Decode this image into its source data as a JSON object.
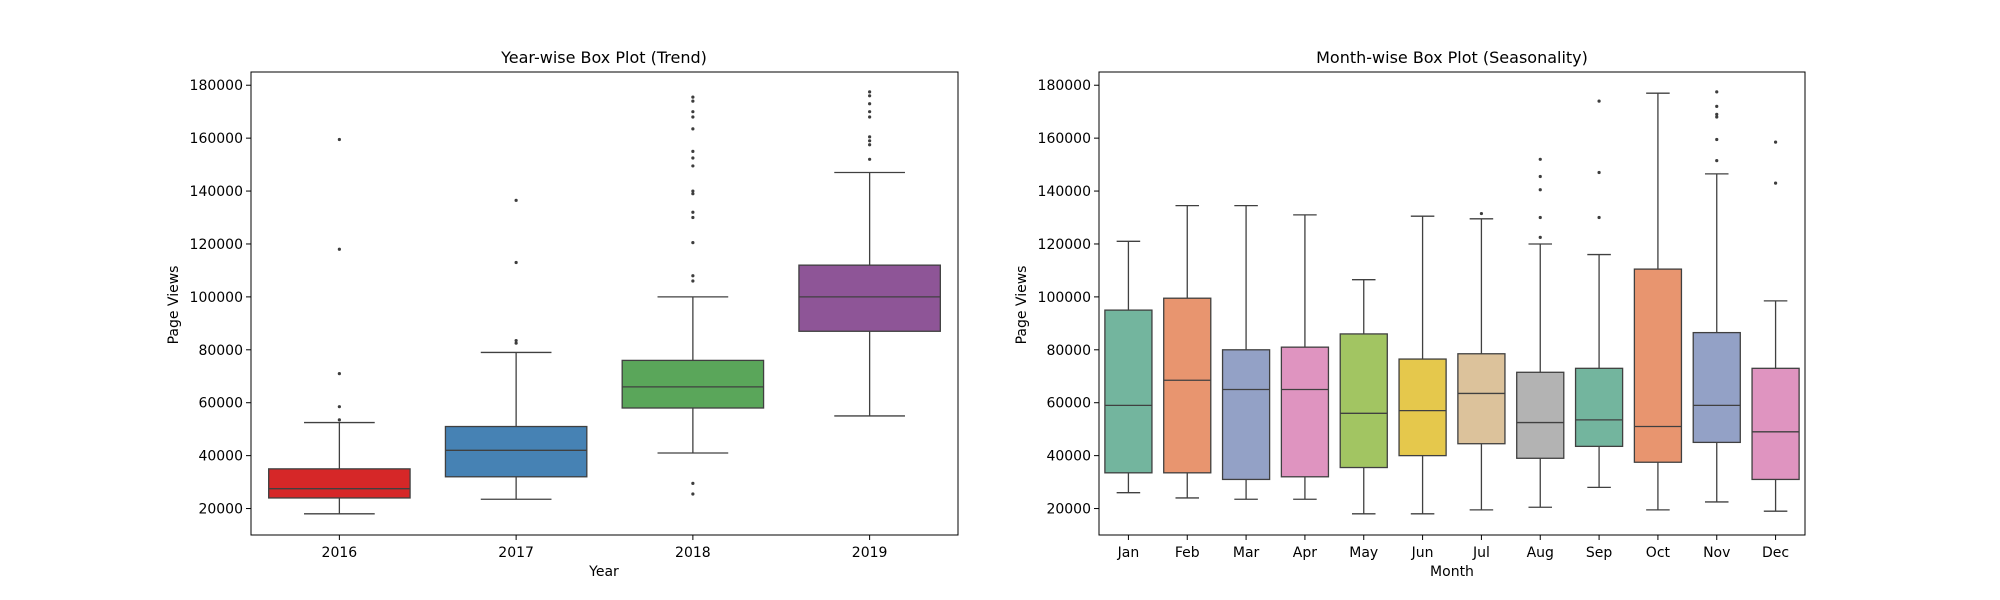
{
  "figure": {
    "background": "#ffffff"
  },
  "chart_data": [
    {
      "type": "box",
      "title": "Year-wise Box Plot (Trend)",
      "xlabel": "Year",
      "ylabel": "Page Views",
      "ylim": [
        10000,
        185000
      ],
      "yticks": [
        20000,
        40000,
        60000,
        80000,
        100000,
        120000,
        140000,
        160000,
        180000
      ],
      "categories": [
        "2016",
        "2017",
        "2018",
        "2019"
      ],
      "colors": [
        "#d62728",
        "#4682b4",
        "#5aa65a",
        "#8e5597"
      ],
      "boxes": [
        {
          "q1": 24000,
          "median": 27500,
          "q3": 35000,
          "whisker_low": 18000,
          "whisker_high": 52500,
          "outliers": [
            53500,
            58500,
            71000,
            118000,
            159500
          ]
        },
        {
          "q1": 32000,
          "median": 42000,
          "q3": 51000,
          "whisker_low": 23500,
          "whisker_high": 79000,
          "outliers": [
            82500,
            83500,
            113000,
            136500
          ]
        },
        {
          "q1": 58000,
          "median": 66000,
          "q3": 76000,
          "whisker_low": 41000,
          "whisker_high": 100000,
          "outliers": [
            25500,
            29500,
            106000,
            108000,
            120500,
            130000,
            132000,
            139000,
            140000,
            149500,
            152500,
            155000,
            163500,
            168000,
            170000,
            174000,
            175500
          ]
        },
        {
          "q1": 87000,
          "median": 100000,
          "q3": 112000,
          "whisker_low": 55000,
          "whisker_high": 147000,
          "outliers": [
            152000,
            157500,
            159000,
            160500,
            168000,
            170000,
            173000,
            176000,
            177500
          ]
        }
      ]
    },
    {
      "type": "box",
      "title": "Month-wise Box Plot (Seasonality)",
      "xlabel": "Month",
      "ylabel": "Page Views",
      "ylim": [
        10000,
        185000
      ],
      "yticks": [
        20000,
        40000,
        60000,
        80000,
        100000,
        120000,
        140000,
        160000,
        180000
      ],
      "categories": [
        "Jan",
        "Feb",
        "Mar",
        "Apr",
        "May",
        "Jun",
        "Jul",
        "Aug",
        "Sep",
        "Oct",
        "Nov",
        "Dec"
      ],
      "colors": [
        "#73b59e",
        "#e8956f",
        "#93a1c6",
        "#df94c0",
        "#a2c562",
        "#e5c84c",
        "#dcc29b",
        "#b3b3b3",
        "#73b59e",
        "#e8956f",
        "#93a1c6",
        "#df94c0"
      ],
      "boxes": [
        {
          "q1": 33500,
          "median": 59000,
          "q3": 95000,
          "whisker_low": 26000,
          "whisker_high": 121000,
          "outliers": []
        },
        {
          "q1": 33500,
          "median": 68500,
          "q3": 99500,
          "whisker_low": 24000,
          "whisker_high": 134500,
          "outliers": []
        },
        {
          "q1": 31000,
          "median": 65000,
          "q3": 80000,
          "whisker_low": 23500,
          "whisker_high": 134500,
          "outliers": []
        },
        {
          "q1": 32000,
          "median": 65000,
          "q3": 81000,
          "whisker_low": 23500,
          "whisker_high": 131000,
          "outliers": []
        },
        {
          "q1": 35500,
          "median": 56000,
          "q3": 86000,
          "whisker_low": 18000,
          "whisker_high": 106500,
          "outliers": []
        },
        {
          "q1": 40000,
          "median": 57000,
          "q3": 76500,
          "whisker_low": 18000,
          "whisker_high": 130500,
          "outliers": []
        },
        {
          "q1": 44500,
          "median": 63500,
          "q3": 78500,
          "whisker_low": 19500,
          "whisker_high": 129500,
          "outliers": [
            131500
          ]
        },
        {
          "q1": 39000,
          "median": 52500,
          "q3": 71500,
          "whisker_low": 20500,
          "whisker_high": 120000,
          "outliers": [
            122500,
            130000,
            140500,
            145500,
            152000
          ]
        },
        {
          "q1": 43500,
          "median": 53500,
          "q3": 73000,
          "whisker_low": 28000,
          "whisker_high": 116000,
          "outliers": [
            130000,
            147000,
            174000
          ]
        },
        {
          "q1": 37500,
          "median": 51000,
          "q3": 110500,
          "whisker_low": 19500,
          "whisker_high": 177000,
          "outliers": []
        },
        {
          "q1": 45000,
          "median": 59000,
          "q3": 86500,
          "whisker_low": 22500,
          "whisker_high": 146500,
          "outliers": [
            151500,
            159500,
            168000,
            169000,
            172000,
            177500
          ]
        },
        {
          "q1": 31000,
          "median": 49000,
          "q3": 73000,
          "whisker_low": 19000,
          "whisker_high": 98500,
          "outliers": [
            143000,
            158500
          ]
        }
      ]
    }
  ]
}
